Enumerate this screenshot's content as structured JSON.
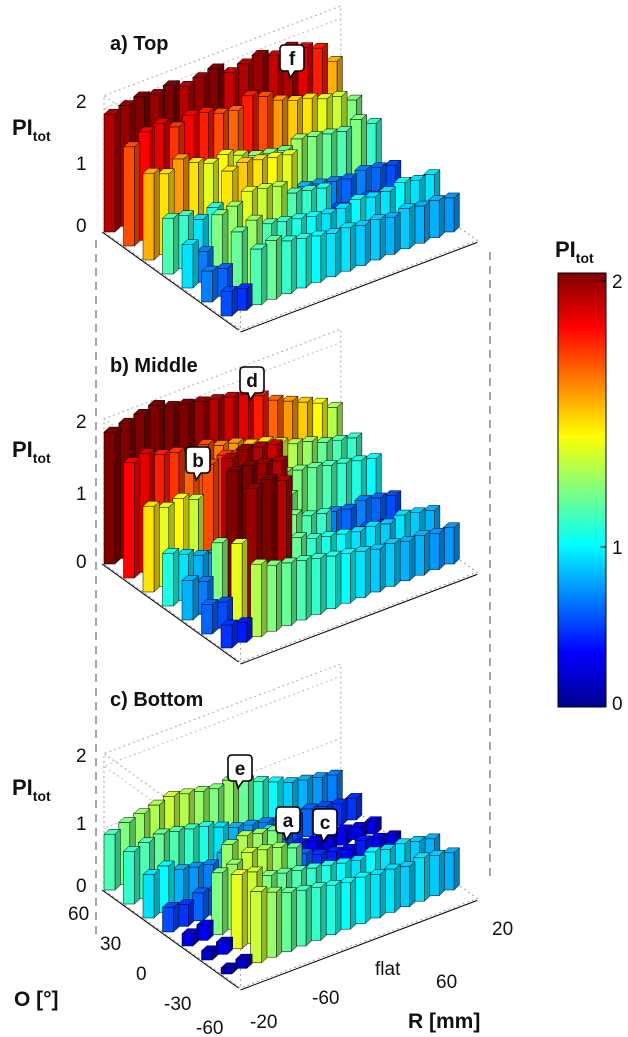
{
  "chart_data": {
    "type": "bar3d",
    "colorbar": {
      "label_main": "PI",
      "label_sub": "tot",
      "ticks": [
        "2",
        "1",
        "0"
      ],
      "range": [
        0,
        2
      ],
      "colormap": "jet"
    },
    "axes": {
      "z_label_main": "PI",
      "z_label_sub": "tot",
      "z_ticks": [
        "2",
        "1",
        "0"
      ],
      "o_label": "O [°]",
      "o_ticks": [
        "60",
        "30",
        "0",
        "-30",
        "-60"
      ],
      "r_label": "R [mm]",
      "r_ticks": [
        "20",
        "60",
        "flat",
        "-60",
        "-20"
      ]
    },
    "panels": [
      {
        "title": "a) Top",
        "callouts": [
          "f"
        ],
        "rows": [
          [
            1.9,
            1.95,
            2.0,
            1.95,
            2.0,
            1.9,
            1.95,
            2.0,
            1.85,
            1.9,
            1.95,
            1.85,
            1.9,
            1.8,
            1.7,
            1.4
          ],
          [
            1.6,
            1.75,
            1.8,
            1.65,
            1.75,
            1.7,
            1.6,
            1.55,
            1.7,
            1.6,
            1.45,
            1.35,
            1.3,
            1.2,
            1.15,
            1.0
          ],
          [
            1.4,
            1.3,
            1.45,
            1.3,
            1.2,
            1.25,
            1.15,
            1.05,
            1.0,
            0.95,
            1.05,
            1.0,
            0.95,
            0.9,
            1.0,
            0.85
          ],
          [
            0.9,
            0.85,
            0.7,
            0.8,
            1.3,
            1.35,
            1.3,
            1.25,
            1.2,
            0.6,
            0.55,
            0.5,
            0.45,
            0.5,
            0.45,
            0.4
          ],
          [
            0.7,
            0.5,
            1.0,
            1.05,
            1.2,
            1.15,
            1.1,
            0.9,
            0.85,
            0.8,
            0.4,
            0.35,
            0.4,
            0.35,
            0.3,
            0.35
          ],
          [
            0.5,
            0.45,
            0.95,
            1.05,
            0.9,
            0.85,
            0.8,
            0.75,
            0.7,
            0.7,
            0.75,
            0.7,
            0.7,
            0.75,
            0.7,
            0.7
          ],
          [
            0.4,
            0.35,
            0.9,
            0.95,
            0.85,
            0.8,
            0.75,
            0.7,
            0.7,
            0.65,
            0.65,
            0.6,
            0.65,
            0.6,
            0.6,
            0.55
          ]
        ]
      },
      {
        "title": "b) Middle",
        "callouts": [
          "d",
          "b"
        ],
        "rows": [
          [
            2.0,
            2.05,
            2.1,
            2.15,
            2.05,
            2.0,
            1.95,
            1.9,
            1.85,
            1.8,
            1.7,
            1.55,
            1.45,
            1.35,
            1.25,
            1.1
          ],
          [
            1.75,
            1.8,
            1.7,
            1.65,
            1.55,
            1.6,
            1.5,
            1.45,
            1.35,
            1.3,
            1.2,
            1.1,
            1.05,
            0.95,
            0.9,
            0.85
          ],
          [
            1.3,
            1.2,
            1.25,
            1.15,
            1.6,
            1.65,
            1.6,
            1.55,
            1.1,
            1.05,
            1.0,
            0.95,
            0.9,
            0.85,
            0.8,
            0.75
          ],
          [
            0.8,
            0.7,
            0.6,
            0.55,
            1.9,
            1.95,
            1.9,
            1.85,
            1.0,
            0.55,
            0.5,
            0.5,
            0.45,
            0.5,
            0.45,
            0.4
          ],
          [
            0.6,
            0.5,
            1.0,
            2.0,
            2.0,
            1.95,
            1.9,
            1.0,
            0.9,
            0.85,
            0.4,
            0.35,
            0.4,
            0.35,
            0.3,
            0.3
          ],
          [
            0.45,
            0.4,
            1.2,
            1.95,
            2.0,
            1.9,
            0.95,
            0.85,
            0.8,
            0.75,
            0.7,
            0.7,
            0.65,
            0.7,
            0.65,
            0.6
          ],
          [
            0.35,
            0.3,
            1.1,
            1.0,
            0.95,
            0.9,
            0.85,
            0.8,
            0.75,
            0.7,
            0.65,
            0.65,
            0.6,
            0.6,
            0.55,
            0.55
          ]
        ]
      },
      {
        "title": "c) Bottom",
        "callouts": [
          "e",
          "a",
          "c"
        ],
        "rows": [
          [
            0.9,
            1.0,
            1.05,
            1.1,
            1.15,
            1.1,
            1.05,
            1.0,
            1.05,
            0.95,
            0.85,
            0.75,
            0.65,
            0.6,
            0.55,
            0.5
          ],
          [
            0.85,
            0.9,
            0.95,
            0.9,
            0.85,
            0.8,
            0.7,
            0.6,
            0.55,
            0.5,
            0.45,
            0.4,
            0.45,
            0.4,
            0.35,
            0.35
          ],
          [
            0.7,
            0.75,
            0.6,
            0.55,
            0.5,
            0.6,
            0.55,
            0.5,
            0.7,
            0.45,
            0.3,
            0.25,
            0.2,
            0.25,
            0.2,
            0.2
          ],
          [
            0.4,
            0.35,
            0.45,
            0.4,
            1.05,
            1.1,
            1.05,
            1.0,
            0.55,
            0.45,
            0.35,
            0.3,
            0.25,
            0.3,
            0.25,
            0.2
          ],
          [
            0.2,
            0.25,
            1.0,
            1.05,
            1.15,
            1.1,
            1.05,
            0.95,
            0.4,
            0.35,
            0.25,
            0.2,
            0.25,
            0.2,
            0.2,
            0.2
          ],
          [
            0.15,
            0.2,
            1.2,
            1.15,
            1.0,
            0.95,
            0.9,
            0.85,
            0.8,
            0.75,
            0.7,
            0.75,
            0.7,
            0.7,
            0.65,
            0.6
          ],
          [
            0.1,
            0.15,
            1.15,
            1.05,
            0.95,
            0.9,
            0.85,
            0.8,
            0.75,
            0.75,
            0.7,
            0.7,
            0.65,
            0.7,
            0.65,
            0.6
          ]
        ]
      }
    ]
  }
}
